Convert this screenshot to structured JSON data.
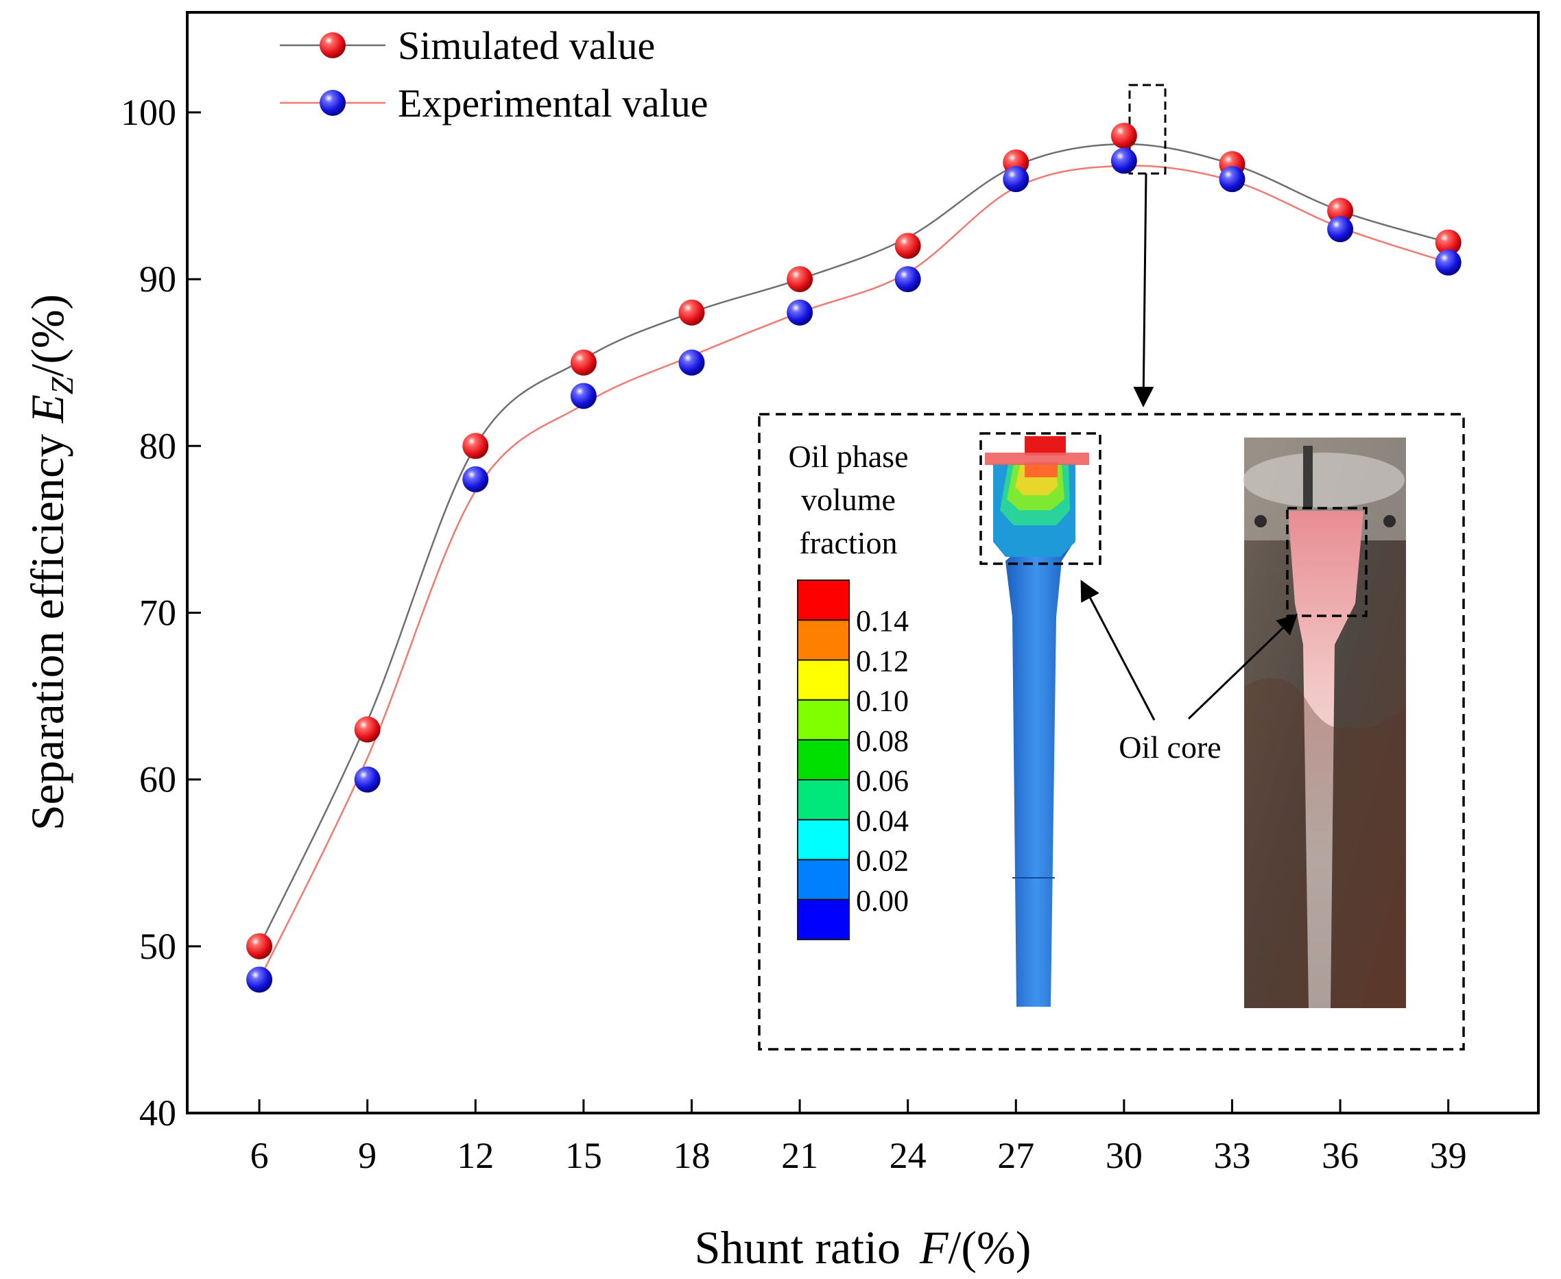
{
  "chart_data": {
    "type": "line",
    "xlabel_prefix": "Shunt ratio",
    "xlabel_var": "F",
    "xlabel_unit": "/(%)",
    "ylabel_prefix": "Separation efficiency",
    "ylabel_var": "E",
    "ylabel_sub": "Z",
    "ylabel_unit": "/(%)",
    "x": [
      6,
      9,
      12,
      15,
      18,
      21,
      24,
      27,
      30,
      33,
      36,
      39
    ],
    "x_ticks": [
      "6",
      "9",
      "12",
      "15",
      "18",
      "21",
      "24",
      "27",
      "30",
      "33",
      "36",
      "39"
    ],
    "xlim": [
      4,
      41.5
    ],
    "ylim": [
      40,
      106
    ],
    "y_ticks": [
      40,
      50,
      60,
      70,
      80,
      90,
      100
    ],
    "y_tick_labels": [
      "40",
      "50",
      "60",
      "70",
      "80",
      "90",
      "100"
    ],
    "legend_position": "top-left",
    "series": [
      {
        "name": "Simulated value",
        "marker_color": "#e8141c",
        "line_color": "#6f6f6f",
        "values": [
          50,
          63,
          80,
          85,
          88,
          90,
          92,
          97,
          98.6,
          96.9,
          94.1,
          92.2
        ],
        "curve": [
          50,
          63.5,
          80,
          85.2,
          88,
          90,
          92.5,
          96.8,
          98.1,
          96.9,
          94.1,
          92.2
        ]
      },
      {
        "name": "Experimental value",
        "marker_color": "#1515e0",
        "line_color": "#f07a72",
        "values": [
          48,
          60,
          78,
          83,
          85,
          88,
          90,
          96,
          97.1,
          96,
          93,
          91
        ],
        "curve": [
          48,
          61.3,
          77.3,
          82.5,
          85.4,
          88,
          90.4,
          95.5,
          96.8,
          95.9,
          93.1,
          91
        ]
      }
    ],
    "inset": {
      "colorbar_title": [
        "Oil phase",
        "volume",
        "fraction"
      ],
      "colorbar_labels": [
        "0.14",
        "0.12",
        "0.10",
        "0.08",
        "0.06",
        "0.04",
        "0.02",
        "0.00"
      ],
      "colorbar_colors": [
        "#ff0000",
        "#ff7f00",
        "#ffff00",
        "#7fff00",
        "#00e000",
        "#00e87c",
        "#00ffff",
        "#007fff",
        "#0000ff"
      ],
      "annotation": "Oil core",
      "highlighted_point_x": 30
    }
  }
}
